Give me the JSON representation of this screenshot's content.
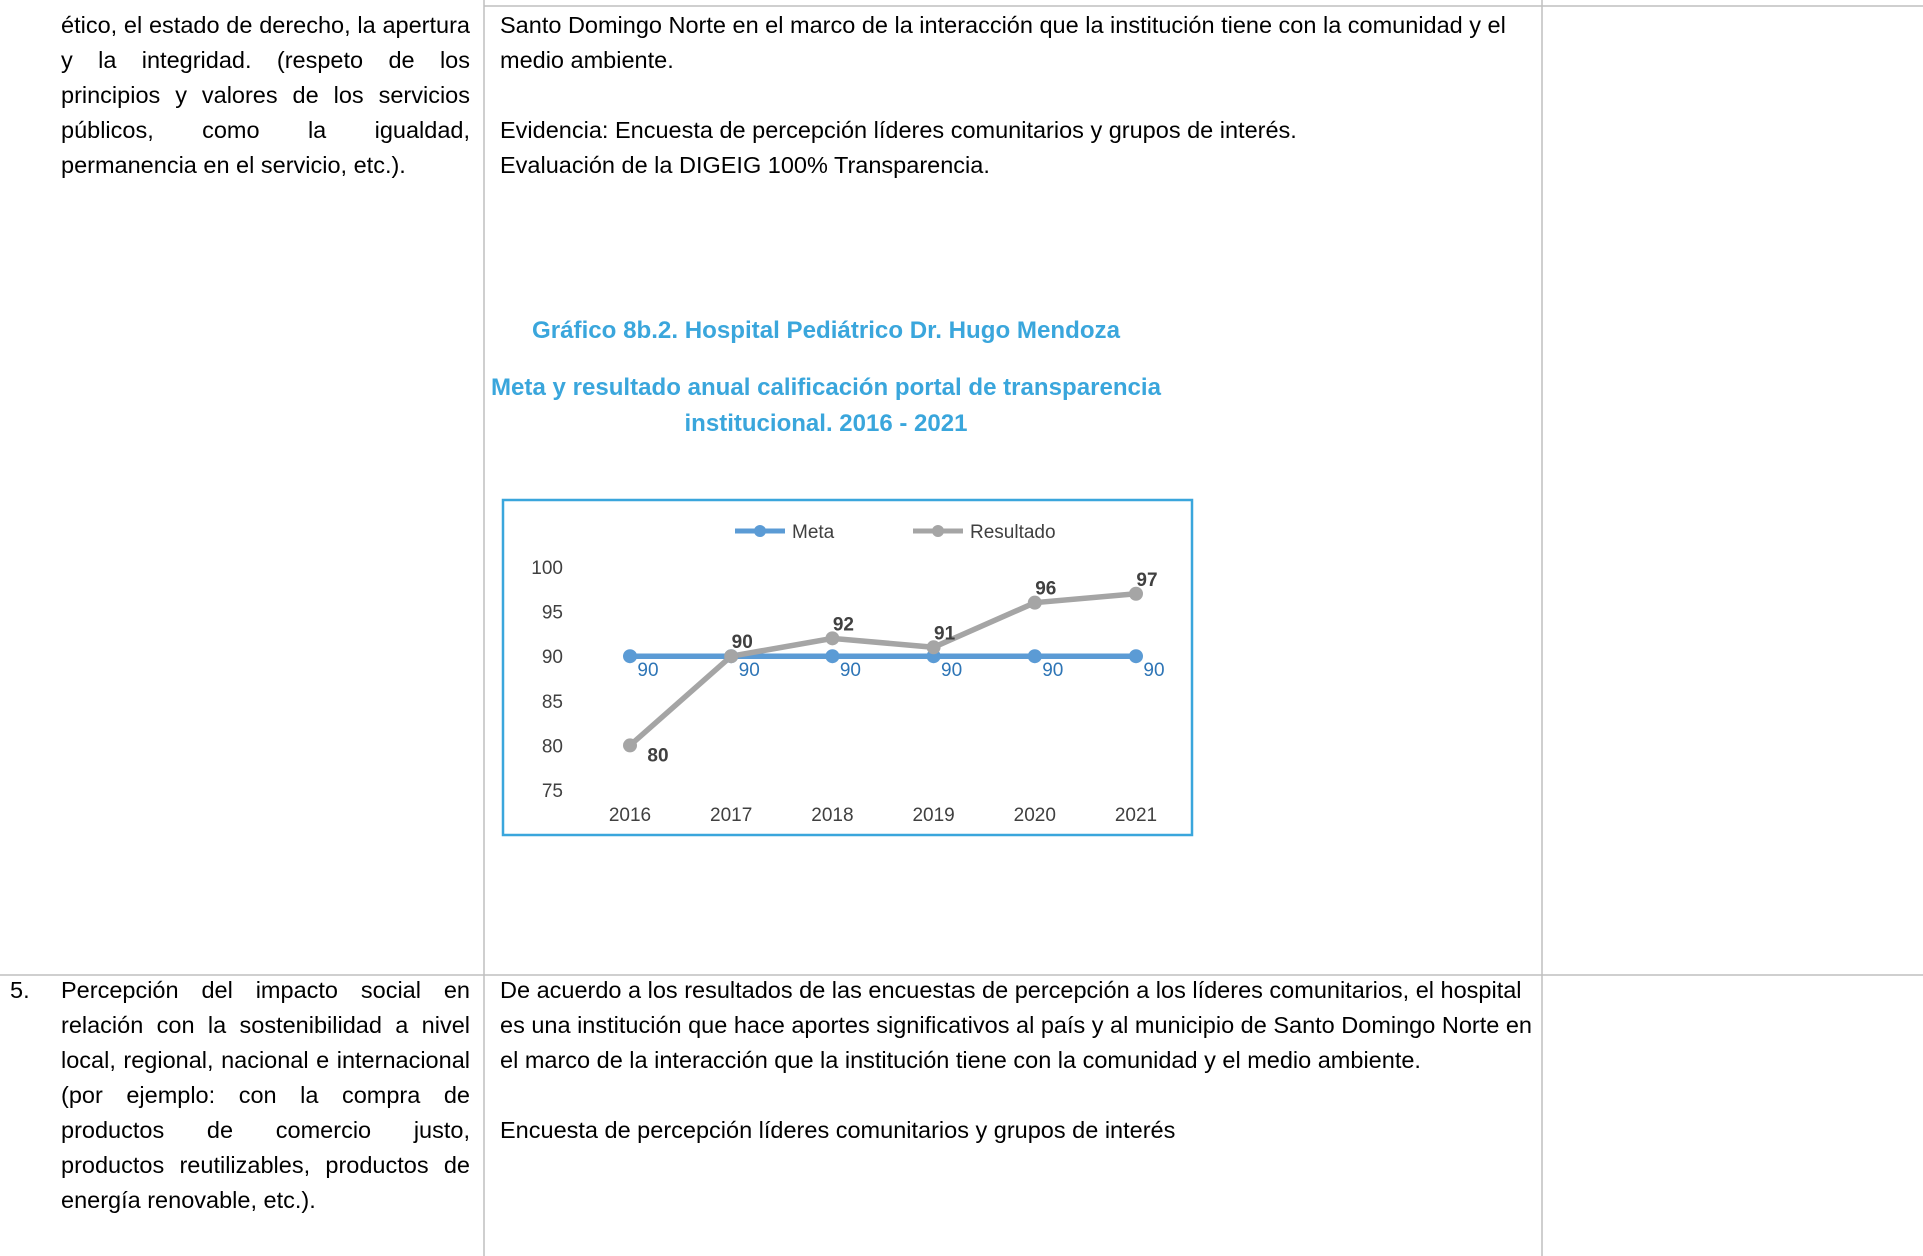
{
  "table": {
    "rows": [
      {
        "cells": [
          {
            "text": "ético, el estado de derecho, la apertura y la integridad. (respeto de los principios y valores de los servicios públicos, como la igualdad, permanencia en el servicio, etc.)."
          },
          {
            "paragraphs": [
              "Santo Domingo Norte en el marco de la interacción que la institución tiene con la comunidad y el medio ambiente.",
              "Evidencia: Encuesta de percepción líderes comunitarios y grupos de interés.",
              "Evaluación de la DIGEIG 100% Transparencia."
            ]
          }
        ]
      },
      {
        "cells": [
          {
            "number": "5.",
            "text": "Percepción del impacto social en relación con la sostenibilidad a nivel local, regional, nacional e internacional (por ejemplo: con la compra de productos de comercio justo, productos reutilizables, productos de energía renovable, etc.)."
          },
          {
            "paragraphs": [
              "De acuerdo a los resultados de las encuestas de percepción a los líderes comunitarios, el hospital es una institución que hace aportes significativos al país y al municipio de Santo Domingo Norte en el marco de la interacción que la institución tiene con la comunidad y el medio ambiente.",
              "Encuesta de percepción líderes comunitarios y grupos de interés"
            ]
          }
        ]
      }
    ]
  },
  "chart_data": {
    "type": "line",
    "title": "Gráfico 8b.2. Hospital Pediátrico Dr. Hugo Mendoza",
    "subtitle": [
      "Meta y resultado anual calificación portal de transparencia",
      "institucional. 2016 - 2021"
    ],
    "categories": [
      "2016",
      "2017",
      "2018",
      "2019",
      "2020",
      "2021"
    ],
    "series": [
      {
        "name": "Meta",
        "color": "#5b9bd5",
        "label_color": "#2e75b6",
        "values": [
          90,
          90,
          90,
          90,
          90,
          90
        ]
      },
      {
        "name": "Resultado",
        "color": "#a5a5a5",
        "label_color": "#404040",
        "values": [
          80,
          90,
          92,
          91,
          96,
          97
        ]
      }
    ],
    "ylim": [
      75,
      100
    ],
    "yticks": [
      75,
      80,
      85,
      90,
      95,
      100
    ],
    "grid": false,
    "legend": "top"
  }
}
